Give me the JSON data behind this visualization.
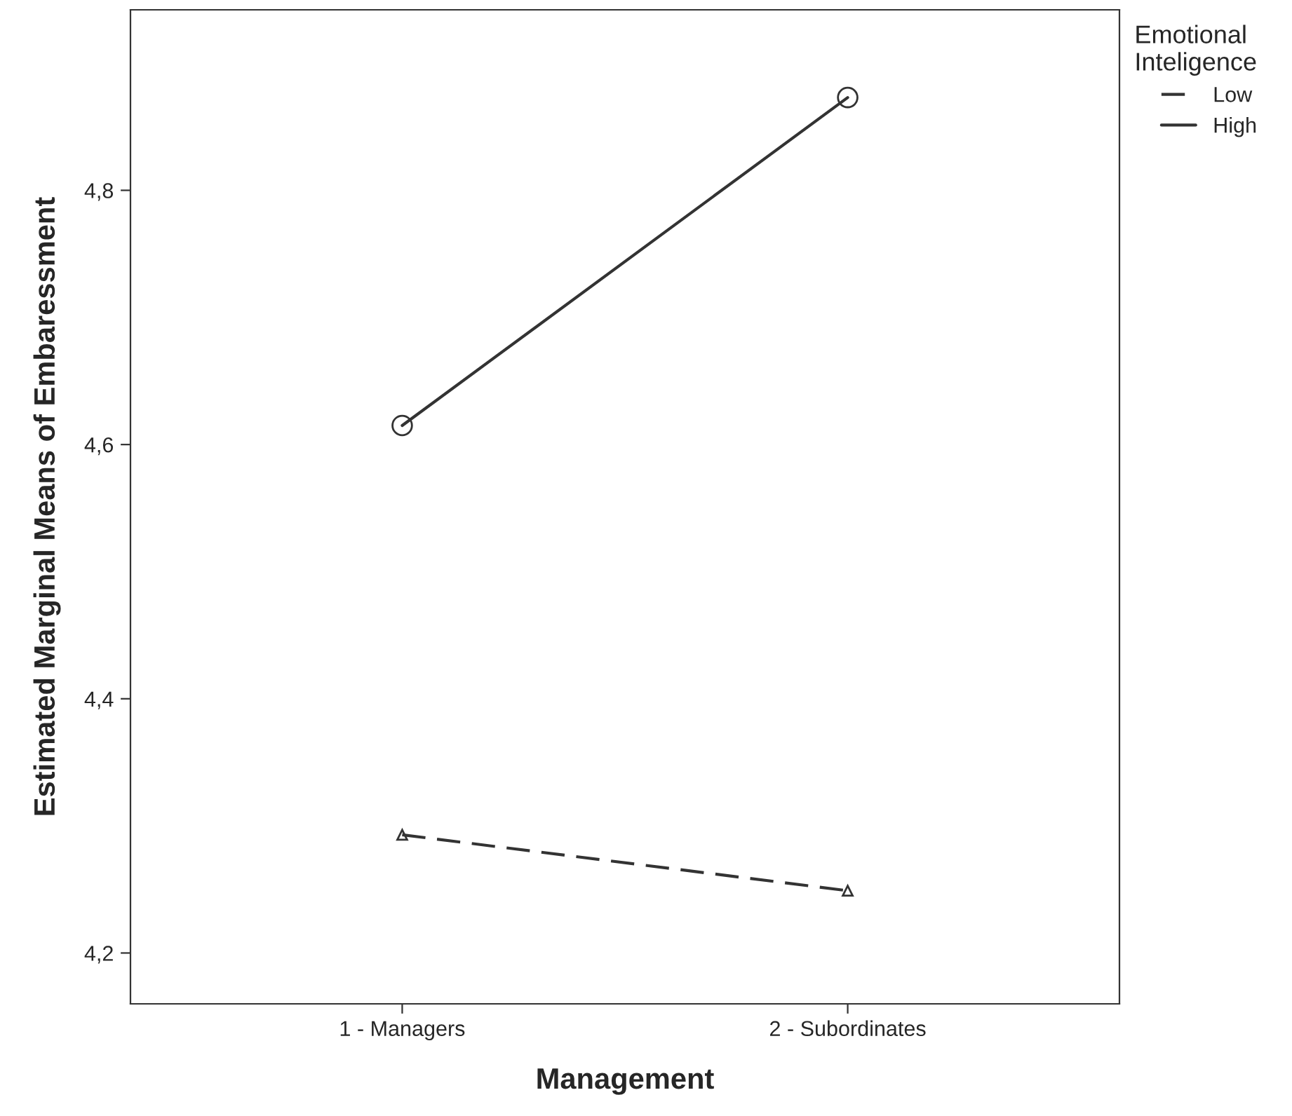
{
  "chart_data": {
    "type": "line",
    "xlabel": "Management",
    "ylabel": "Estimated Marginal Means of Embaressment",
    "legend_title": "Emotional\nInteligence",
    "categories": [
      "1 - Managers",
      "2 - Subordinates"
    ],
    "series": [
      {
        "name": "Low",
        "color": "#333333",
        "values": [
          4.293,
          4.249
        ],
        "marker": "triangle",
        "line_style": "dashed"
      },
      {
        "name": "High",
        "color": "#333333",
        "values": [
          4.615,
          4.873
        ],
        "marker": "circle",
        "line_style": "solid"
      }
    ],
    "ylim": [
      4.16,
      4.942
    ],
    "yticks": [
      {
        "value": 4.2,
        "label": "4,2"
      },
      {
        "value": 4.4,
        "label": "4,4"
      },
      {
        "value": 4.6,
        "label": "4,6"
      },
      {
        "value": 4.8,
        "label": "4,8"
      }
    ],
    "legend": "top right",
    "grid": false
  }
}
